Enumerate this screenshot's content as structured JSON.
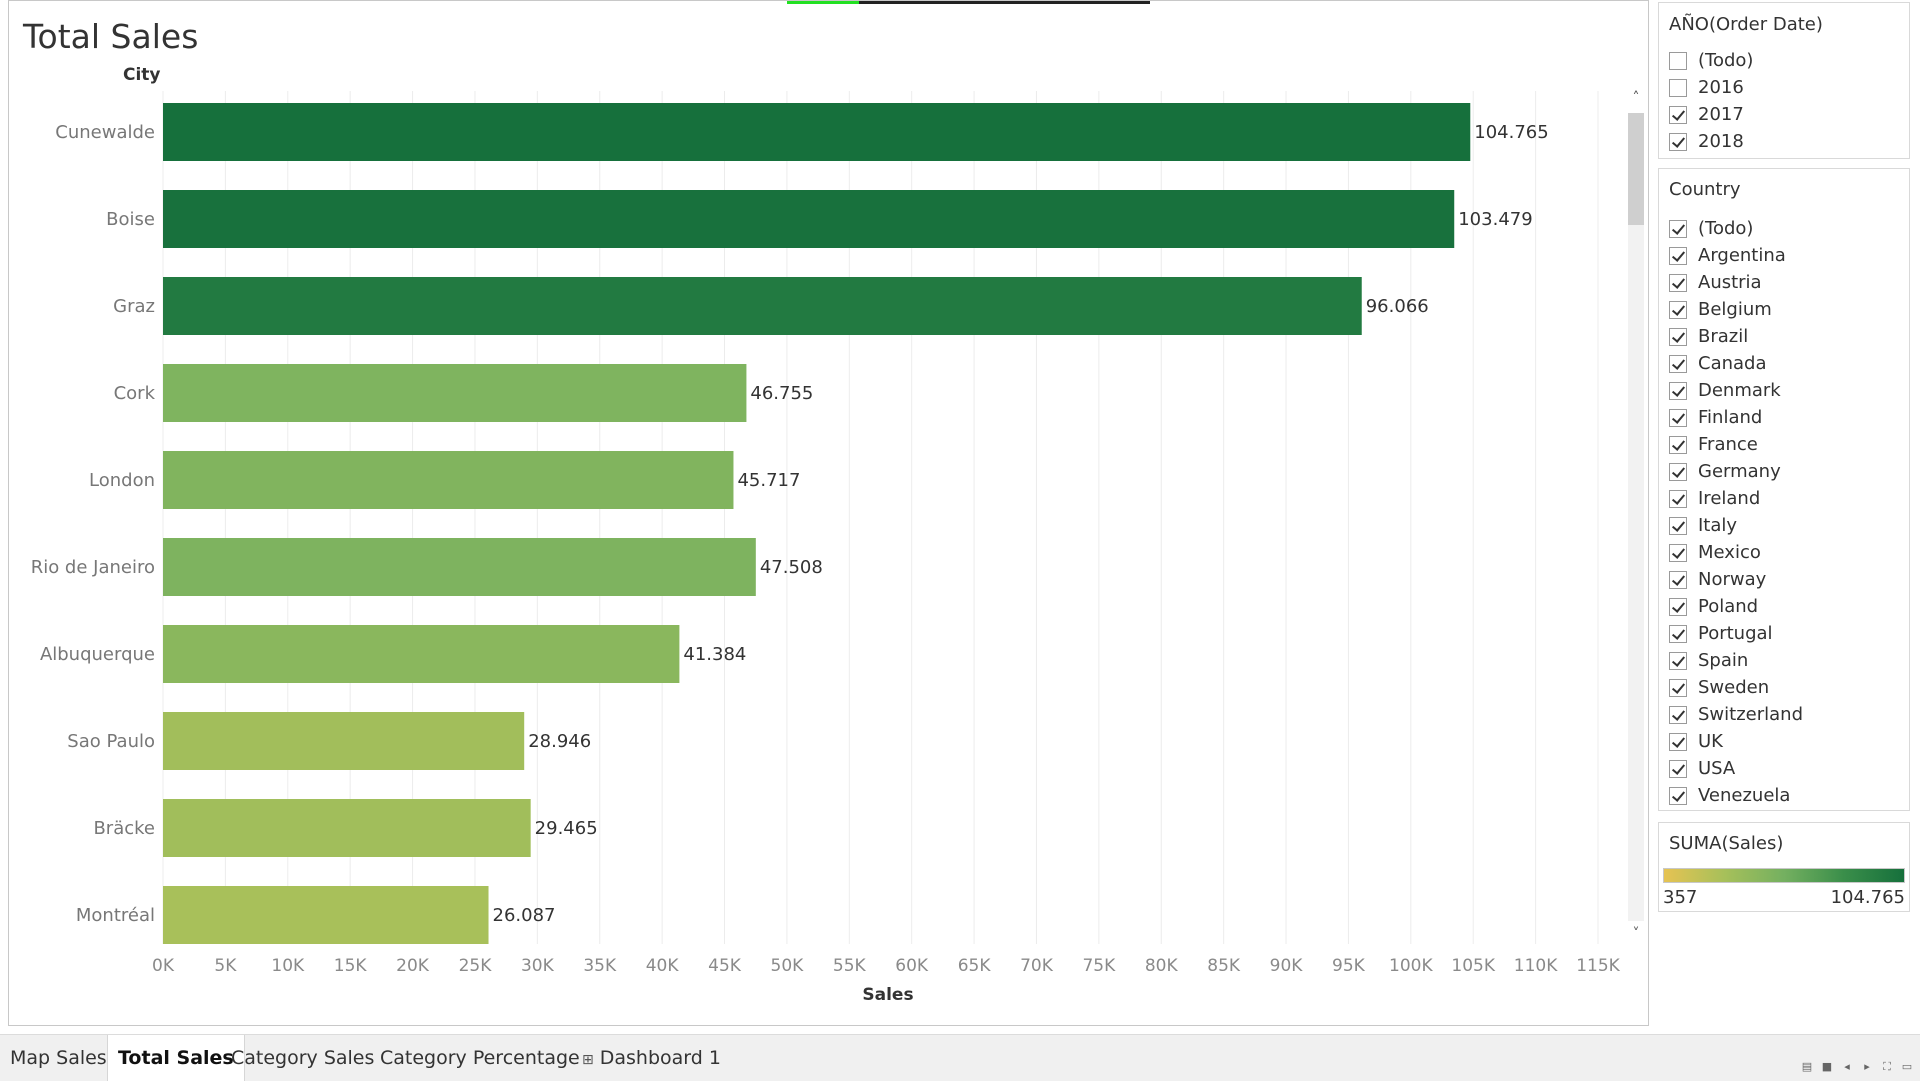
{
  "header": {
    "title": "Total Sales",
    "row_header": "City"
  },
  "chart_data": {
    "type": "bar",
    "orientation": "horizontal",
    "title": "Total Sales",
    "ylabel": "City",
    "xlabel": "Sales",
    "categories": [
      "Cunewalde",
      "Boise",
      "Graz",
      "Cork",
      "London",
      "Rio de Janeiro",
      "Albuquerque",
      "Sao Paulo",
      "Bräcke",
      "Montréal"
    ],
    "values": [
      104765,
      103479,
      96066,
      46755,
      45717,
      47508,
      41384,
      28946,
      29465,
      26087
    ],
    "value_labels": [
      "104.765",
      "103.479",
      "96.066",
      "46.755",
      "45.717",
      "47.508",
      "41.384",
      "28.946",
      "29.465",
      "26.087"
    ],
    "xlim": [
      0,
      115000
    ],
    "x_ticks": [
      0,
      5000,
      10000,
      15000,
      20000,
      25000,
      30000,
      35000,
      40000,
      45000,
      50000,
      55000,
      60000,
      65000,
      70000,
      75000,
      80000,
      85000,
      90000,
      95000,
      100000,
      105000,
      110000,
      115000
    ],
    "x_tick_labels": [
      "0K",
      "5K",
      "10K",
      "15K",
      "20K",
      "25K",
      "30K",
      "35K",
      "40K",
      "45K",
      "50K",
      "55K",
      "60K",
      "65K",
      "70K",
      "75K",
      "80K",
      "85K",
      "90K",
      "95K",
      "100K",
      "105K",
      "110K",
      "115K"
    ],
    "grid": true,
    "color_scale": {
      "min": 357,
      "max": 104765,
      "colors": [
        "#e6c353",
        "#a7c05a",
        "#74b060",
        "#3a8e4a",
        "#16703c"
      ]
    }
  },
  "filters": {
    "year": {
      "title": "AÑO(Order Date)",
      "items": [
        {
          "label": "(Todo)",
          "checked": false
        },
        {
          "label": "2016",
          "checked": false
        },
        {
          "label": "2017",
          "checked": true
        },
        {
          "label": "2018",
          "checked": true
        }
      ]
    },
    "country": {
      "title": "Country",
      "items": [
        {
          "label": "(Todo)",
          "checked": true
        },
        {
          "label": "Argentina",
          "checked": true
        },
        {
          "label": "Austria",
          "checked": true
        },
        {
          "label": "Belgium",
          "checked": true
        },
        {
          "label": "Brazil",
          "checked": true
        },
        {
          "label": "Canada",
          "checked": true
        },
        {
          "label": "Denmark",
          "checked": true
        },
        {
          "label": "Finland",
          "checked": true
        },
        {
          "label": "France",
          "checked": true
        },
        {
          "label": "Germany",
          "checked": true
        },
        {
          "label": "Ireland",
          "checked": true
        },
        {
          "label": "Italy",
          "checked": true
        },
        {
          "label": "Mexico",
          "checked": true
        },
        {
          "label": "Norway",
          "checked": true
        },
        {
          "label": "Poland",
          "checked": true
        },
        {
          "label": "Portugal",
          "checked": true
        },
        {
          "label": "Spain",
          "checked": true
        },
        {
          "label": "Sweden",
          "checked": true
        },
        {
          "label": "Switzerland",
          "checked": true
        },
        {
          "label": "UK",
          "checked": true
        },
        {
          "label": "USA",
          "checked": true
        },
        {
          "label": "Venezuela",
          "checked": true
        }
      ]
    }
  },
  "legend": {
    "title": "SUMA(Sales)",
    "min_label": "357",
    "max_label": "104.765"
  },
  "tabs": [
    {
      "label": "Map Sales",
      "active": false
    },
    {
      "label": "Total Sales",
      "active": true
    },
    {
      "label": "Category Sales",
      "active": false
    },
    {
      "label": "Category Percentage",
      "active": false
    },
    {
      "label": "Dashboard 1",
      "active": false,
      "icon": "dashboard-icon"
    }
  ]
}
